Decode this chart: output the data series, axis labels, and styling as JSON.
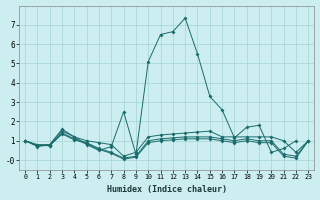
{
  "xlabel": "Humidex (Indice chaleur)",
  "background_color": "#cceef0",
  "grid_color": "#aad8d8",
  "line_color": "#1a6b6b",
  "x_values": [
    0,
    1,
    2,
    3,
    4,
    5,
    6,
    7,
    8,
    9,
    10,
    11,
    12,
    13,
    14,
    15,
    16,
    17,
    18,
    19,
    20,
    21,
    22,
    23
  ],
  "series": [
    [
      1.0,
      0.7,
      0.8,
      1.6,
      1.2,
      0.8,
      0.5,
      0.7,
      2.5,
      0.3,
      5.1,
      6.5,
      6.65,
      7.35,
      5.5,
      3.3,
      2.6,
      1.15,
      1.7,
      1.8,
      0.4,
      0.6,
      1.0,
      null
    ],
    [
      1.0,
      0.8,
      0.8,
      1.5,
      1.2,
      1.0,
      0.9,
      0.8,
      0.2,
      0.4,
      1.2,
      1.3,
      1.35,
      1.4,
      1.45,
      1.5,
      1.2,
      1.2,
      1.2,
      1.2,
      1.2,
      1.0,
      0.4,
      1.0
    ],
    [
      1.0,
      0.75,
      0.75,
      1.4,
      1.1,
      0.9,
      0.6,
      0.4,
      0.1,
      0.2,
      1.0,
      1.1,
      1.15,
      1.2,
      1.2,
      1.2,
      1.1,
      1.0,
      1.1,
      1.0,
      1.0,
      0.3,
      0.2,
      1.0
    ],
    [
      1.0,
      0.75,
      0.75,
      1.35,
      1.05,
      0.85,
      0.55,
      0.35,
      0.05,
      0.15,
      0.9,
      1.0,
      1.05,
      1.1,
      1.1,
      1.1,
      1.0,
      0.9,
      1.0,
      0.9,
      0.9,
      0.2,
      0.1,
      1.0
    ]
  ],
  "ylim": [
    -0.5,
    8.0
  ],
  "xlim": [
    -0.5,
    23.5
  ],
  "yticks": [
    0,
    1,
    2,
    3,
    4,
    5,
    6,
    7
  ],
  "ytick_labels": [
    "-0",
    "1",
    "2",
    "3",
    "4",
    "5",
    "6",
    "7"
  ],
  "xticks": [
    0,
    1,
    2,
    3,
    4,
    5,
    6,
    7,
    8,
    9,
    10,
    11,
    12,
    13,
    14,
    15,
    16,
    17,
    18,
    19,
    20,
    21,
    22,
    23
  ]
}
